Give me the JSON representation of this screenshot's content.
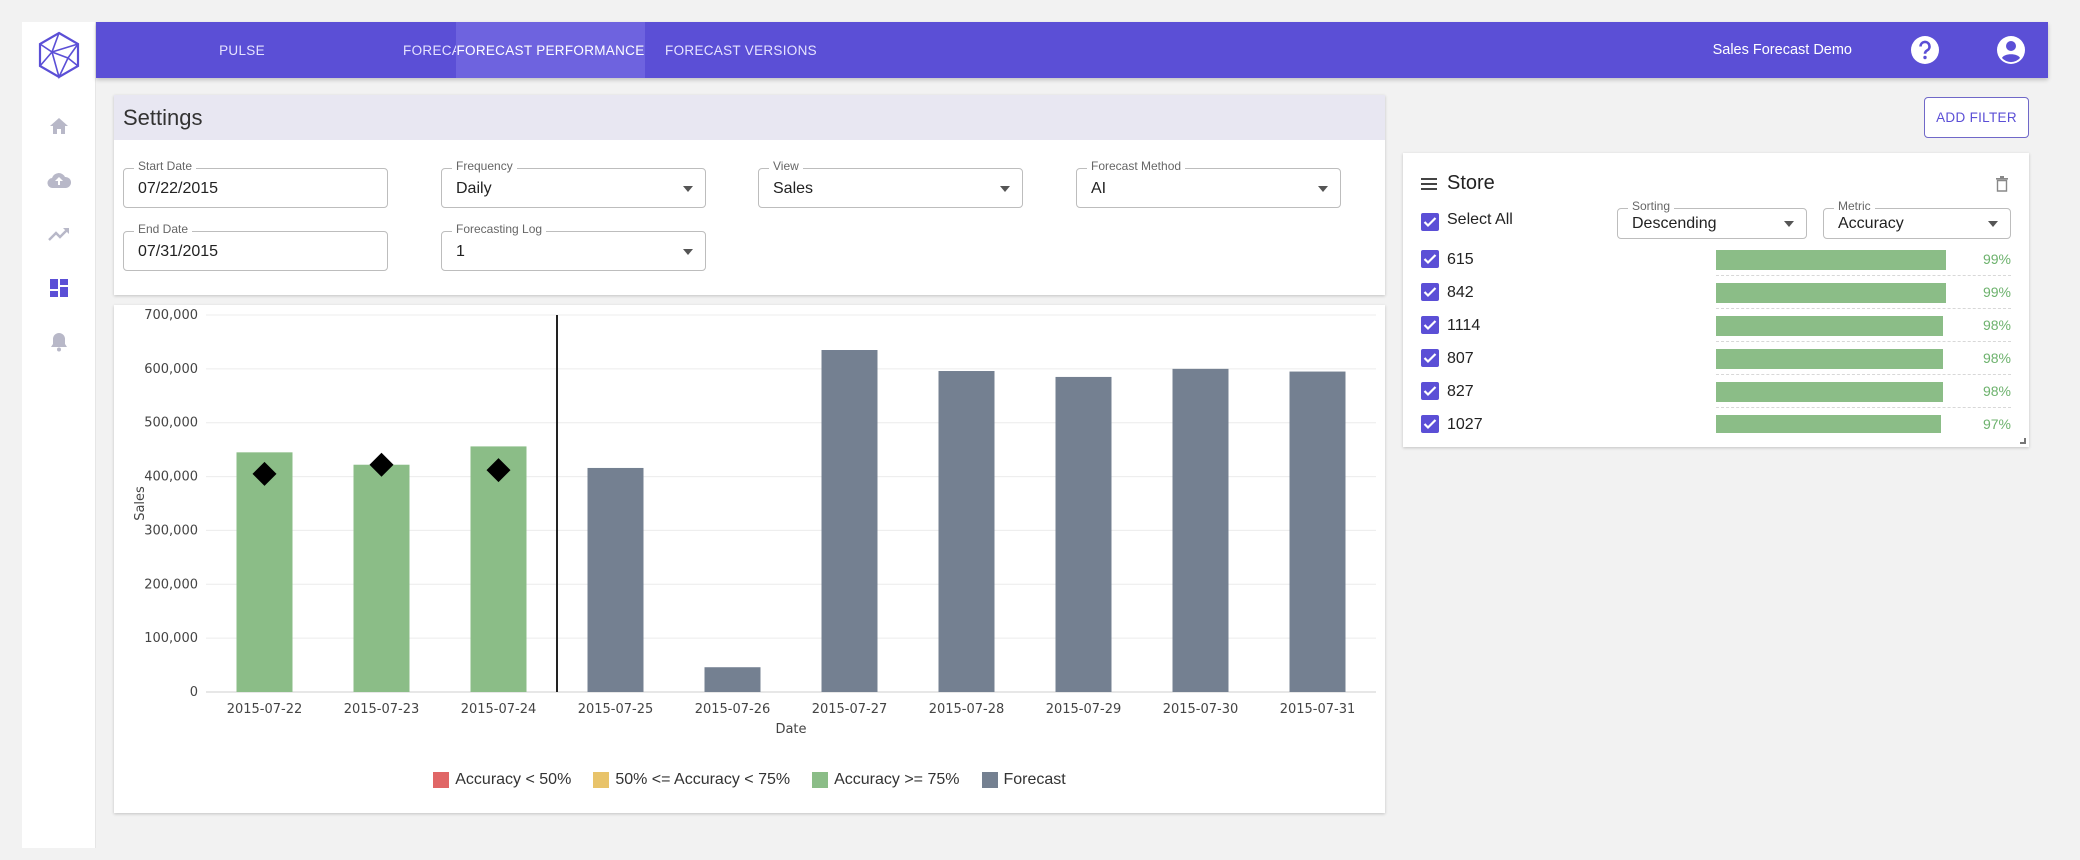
{
  "nav": {
    "tabs": [
      {
        "label": "PULSE"
      },
      {
        "label": "FORECAST"
      },
      {
        "label": "FORECAST PERFORMANCE"
      },
      {
        "label": "FORECAST VERSIONS"
      }
    ],
    "active_tab": "FORECAST PERFORMANCE",
    "app_name": "Sales Forecast Demo",
    "help_icon": "help-circle-icon",
    "user_icon": "account-circle-icon"
  },
  "sidebar": {
    "icons": [
      "home-icon",
      "cloud-upload-icon",
      "trending-up-icon",
      "dashboard-icon",
      "bell-icon"
    ],
    "active": "dashboard-icon"
  },
  "settings": {
    "title": "Settings",
    "start_date": {
      "label": "Start Date",
      "value": "07/22/2015"
    },
    "end_date": {
      "label": "End Date",
      "value": "07/31/2015"
    },
    "frequency": {
      "label": "Frequency",
      "value": "Daily"
    },
    "forecasting_log": {
      "label": "Forecasting Log",
      "value": "1"
    },
    "view": {
      "label": "View",
      "value": "Sales"
    },
    "forecast_method": {
      "label": "Forecast Method",
      "value": "AI"
    }
  },
  "add_filter_label": "ADD FILTER",
  "store": {
    "title": "Store",
    "select_all_label": "Select All",
    "sorting": {
      "label": "Sorting",
      "value": "Descending"
    },
    "metric": {
      "label": "Metric",
      "value": "Accuracy"
    },
    "rows": [
      {
        "id": "615",
        "accuracy": 0.99,
        "label": "99%"
      },
      {
        "id": "842",
        "accuracy": 0.99,
        "label": "99%"
      },
      {
        "id": "1114",
        "accuracy": 0.98,
        "label": "98%"
      },
      {
        "id": "807",
        "accuracy": 0.98,
        "label": "98%"
      },
      {
        "id": "827",
        "accuracy": 0.98,
        "label": "98%"
      },
      {
        "id": "1027",
        "accuracy": 0.97,
        "label": "97%"
      }
    ]
  },
  "colors": {
    "primary": "#5b4fd6",
    "bar_good": "#8bbd87",
    "bar_forecast": "#748091",
    "acc_low": "#e06666",
    "acc_mid": "#e8c36a",
    "acc_high": "#8bbd87"
  },
  "chart_data": {
    "type": "bar",
    "categories": [
      "2015-07-22",
      "2015-07-23",
      "2015-07-24",
      "2015-07-25",
      "2015-07-26",
      "2015-07-27",
      "2015-07-28",
      "2015-07-29",
      "2015-07-30",
      "2015-07-31"
    ],
    "series": [
      {
        "name": "Accuracy >= 75%",
        "values": [
          445000,
          422000,
          456000,
          null,
          null,
          null,
          null,
          null,
          null,
          null
        ]
      },
      {
        "name": "Forecast",
        "values": [
          null,
          null,
          null,
          416000,
          46000,
          635000,
          596000,
          585000,
          600000,
          595000
        ]
      }
    ],
    "actual_markers": [
      405000,
      422000,
      412000
    ],
    "divider_after_category": "2015-07-24",
    "xlabel": "Date",
    "ylabel": "Sales",
    "ylim": [
      0,
      700000
    ],
    "yticks": [
      0,
      100000,
      200000,
      300000,
      400000,
      500000,
      600000,
      700000
    ],
    "ytick_labels": [
      "0",
      "100,000",
      "200,000",
      "300,000",
      "400,000",
      "500,000",
      "600,000",
      "700,000"
    ],
    "grid": true,
    "legend": [
      {
        "name": "Accuracy < 50%",
        "color": "#e06666"
      },
      {
        "name": "50% <= Accuracy < 75%",
        "color": "#e8c36a"
      },
      {
        "name": "Accuracy >= 75%",
        "color": "#8bbd87"
      },
      {
        "name": "Forecast",
        "color": "#748091"
      }
    ],
    "legend_position": "bottom"
  }
}
